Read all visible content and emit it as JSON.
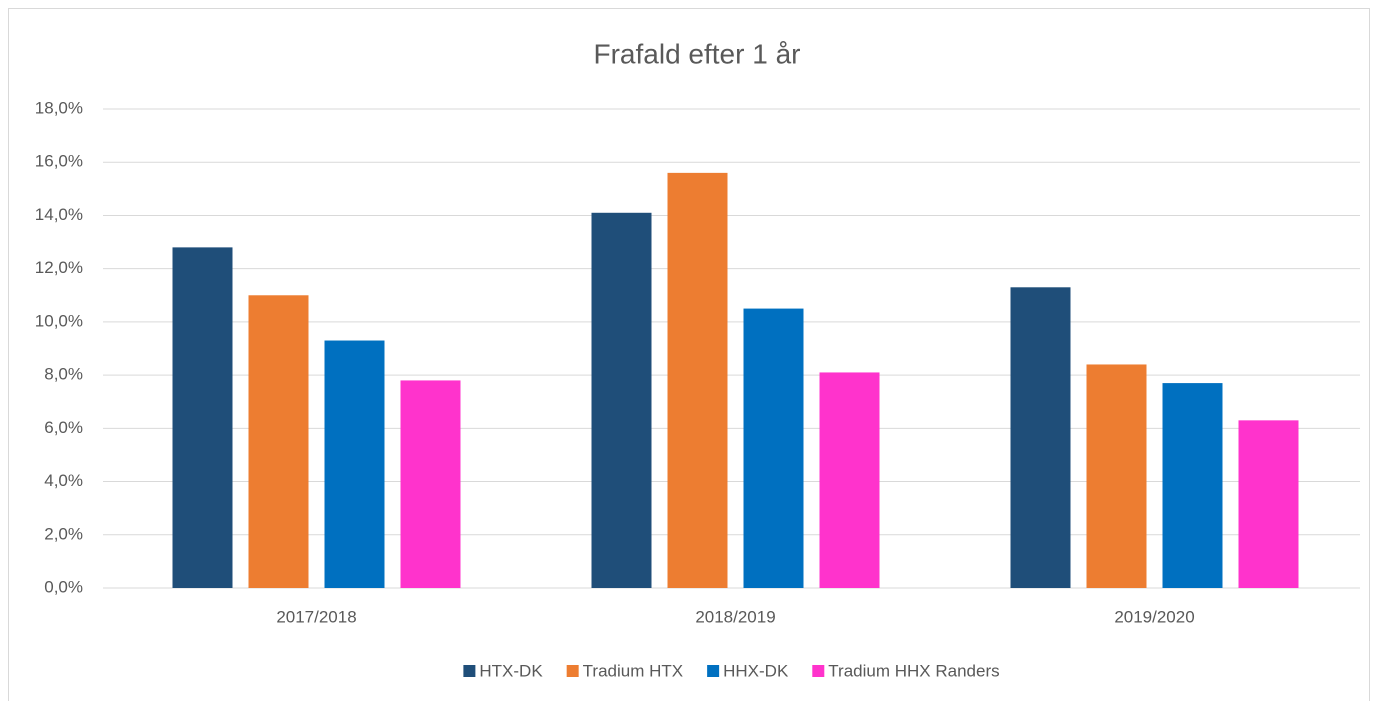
{
  "chart_data": {
    "type": "bar",
    "title": "Frafald efter 1 år",
    "categories": [
      "2017/2018",
      "2018/2019",
      "2019/2020"
    ],
    "series": [
      {
        "name": "HTX-DK",
        "color": "#1f4e79",
        "values": [
          12.8,
          14.1,
          11.3
        ]
      },
      {
        "name": "Tradium HTX",
        "color": "#ed7d31",
        "values": [
          11.0,
          15.6,
          8.4
        ]
      },
      {
        "name": "HHX-DK",
        "color": "#0070c0",
        "values": [
          9.3,
          10.5,
          7.7
        ]
      },
      {
        "name": "Tradium HHX Randers",
        "color": "#ff33cc",
        "values": [
          7.8,
          8.1,
          6.3
        ]
      }
    ],
    "ylim": [
      0,
      18
    ],
    "yticks": [
      {
        "value": 0,
        "label": "0,0%"
      },
      {
        "value": 2,
        "label": "2,0%"
      },
      {
        "value": 4,
        "label": "4,0%"
      },
      {
        "value": 6,
        "label": "6,0%"
      },
      {
        "value": 8,
        "label": "8,0%"
      },
      {
        "value": 10,
        "label": "10,0%"
      },
      {
        "value": 12,
        "label": "12,0%"
      },
      {
        "value": 14,
        "label": "14,0%"
      },
      {
        "value": 16,
        "label": "16,0%"
      },
      {
        "value": 18,
        "label": "18,0%"
      }
    ],
    "grid": true,
    "legend": "bottom"
  }
}
